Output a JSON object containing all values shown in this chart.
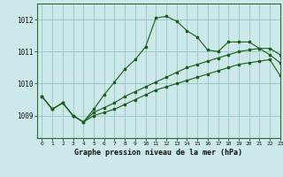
{
  "title": "Graphe pression niveau de la mer (hPa)",
  "bg_color": "#cce8e8",
  "grid_color": "#99cccc",
  "line_color": "#1a5c1a",
  "xlim": [
    -0.5,
    23
  ],
  "ylim": [
    1008.3,
    1012.5
  ],
  "yticks": [
    1009,
    1010,
    1011,
    1012
  ],
  "xticks": [
    0,
    1,
    2,
    3,
    4,
    5,
    6,
    7,
    8,
    9,
    10,
    11,
    12,
    13,
    14,
    15,
    16,
    17,
    18,
    19,
    20,
    21,
    22,
    23
  ],
  "line1_x": [
    0,
    1,
    2,
    3,
    4,
    5,
    6,
    7,
    8,
    9,
    10,
    11,
    12,
    13,
    14,
    15,
    16,
    17,
    18,
    19,
    20,
    21,
    22,
    23
  ],
  "line1_y": [
    1009.6,
    1009.2,
    1009.4,
    1009.0,
    1008.8,
    1009.0,
    1009.1,
    1009.2,
    1009.35,
    1009.5,
    1009.65,
    1009.8,
    1009.9,
    1010.0,
    1010.1,
    1010.2,
    1010.3,
    1010.4,
    1010.5,
    1010.6,
    1010.65,
    1010.7,
    1010.75,
    1010.25
  ],
  "line2_x": [
    0,
    1,
    2,
    3,
    4,
    5,
    6,
    7,
    8,
    9,
    10,
    11,
    12,
    13,
    14,
    15,
    16,
    17,
    18,
    19,
    20,
    21,
    22,
    23
  ],
  "line2_y": [
    1009.6,
    1009.2,
    1009.4,
    1009.0,
    1008.8,
    1009.1,
    1009.25,
    1009.4,
    1009.6,
    1009.75,
    1009.9,
    1010.05,
    1010.2,
    1010.35,
    1010.5,
    1010.6,
    1010.7,
    1010.8,
    1010.9,
    1011.0,
    1011.05,
    1011.1,
    1011.1,
    1010.9
  ],
  "line3_x": [
    0,
    1,
    2,
    3,
    4,
    5,
    6,
    7,
    8,
    9,
    10,
    11,
    12,
    13,
    14,
    15,
    16,
    17,
    18,
    19,
    20,
    21,
    22,
    23
  ],
  "line3_y": [
    1009.6,
    1009.2,
    1009.4,
    1009.0,
    1008.8,
    1009.2,
    1009.65,
    1010.05,
    1010.45,
    1010.75,
    1011.15,
    1012.05,
    1012.1,
    1011.95,
    1011.65,
    1011.45,
    1011.05,
    1011.0,
    1011.3,
    1011.3,
    1011.3,
    1011.1,
    1010.9,
    1010.65
  ]
}
